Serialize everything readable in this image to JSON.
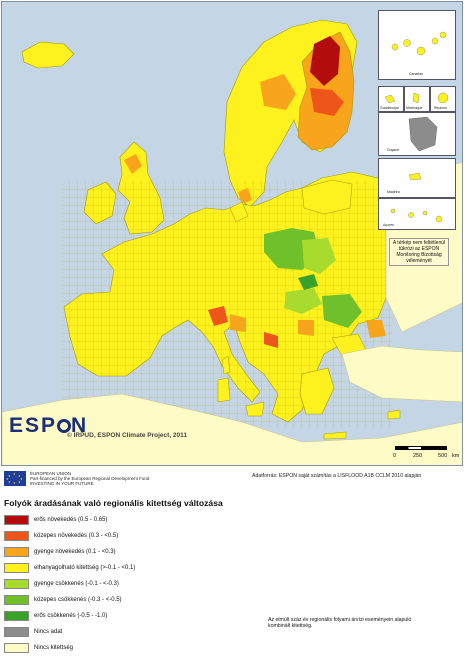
{
  "colors": {
    "sea": "#c4d6e6",
    "no_data": "#8c8c8c",
    "non_espon": "#fffbc6"
  },
  "map": {
    "copyright": "© IRPUD, ESPON Climate Project, 2011",
    "logo_text": "ESP N",
    "disclaimer": "A térkép nem feltétlenül tükrözi az ESPON Monitoring Bizottság véleményét",
    "insets": [
      "Canarias",
      "Guadeloupe",
      "Martinique",
      "Réunion",
      "Guyane",
      "Madeira",
      "Açores"
    ],
    "scale": {
      "labels": [
        "0",
        "250",
        "500"
      ],
      "unit": "km"
    }
  },
  "footer": {
    "eu_lines": [
      "EUROPEAN UNION",
      "Part-financed by the European Regional Development Fund",
      "INVESTING IN YOUR FUTURE"
    ],
    "source": "Adatforrás: ESPON saját számítás a LISFLOOD A1B CCLM 2010 alapján"
  },
  "legend": {
    "title": "Folyók áradásának való regionális kitettség változása",
    "items": [
      {
        "label": "erős  növekedés  (0.5 - 0.65)",
        "color": "#b30c0c"
      },
      {
        "label": "közepes növekedés (0.3 - <0.5)",
        "color": "#ee5518"
      },
      {
        "label": "gyenge növekedés (0.1 - <0.3)",
        "color": "#f9a51c"
      },
      {
        "label": "elhanyagolható kitettség (>-0.1 - <0.1)",
        "color": "#fdf21e"
      },
      {
        "label": "gyenge csökkenés (-0.1 - <-0.3)",
        "color": "#a9db2e"
      },
      {
        "label": "közepes  csökkenés  (-0.3 - <-0.5)",
        "color": "#70c02b"
      },
      {
        "label": "erős  csökkenés (-0.5 - -1.0)",
        "color": "#3aa22a"
      },
      {
        "label": "Nincs adat",
        "color": "#8c8c8c"
      },
      {
        "label": "Nincs kitettség",
        "color": "#fffbc6"
      }
    ],
    "note": "Az elmúlt száz év regionális folyami árvízi eseményein alapuló kombinált kitettség."
  }
}
